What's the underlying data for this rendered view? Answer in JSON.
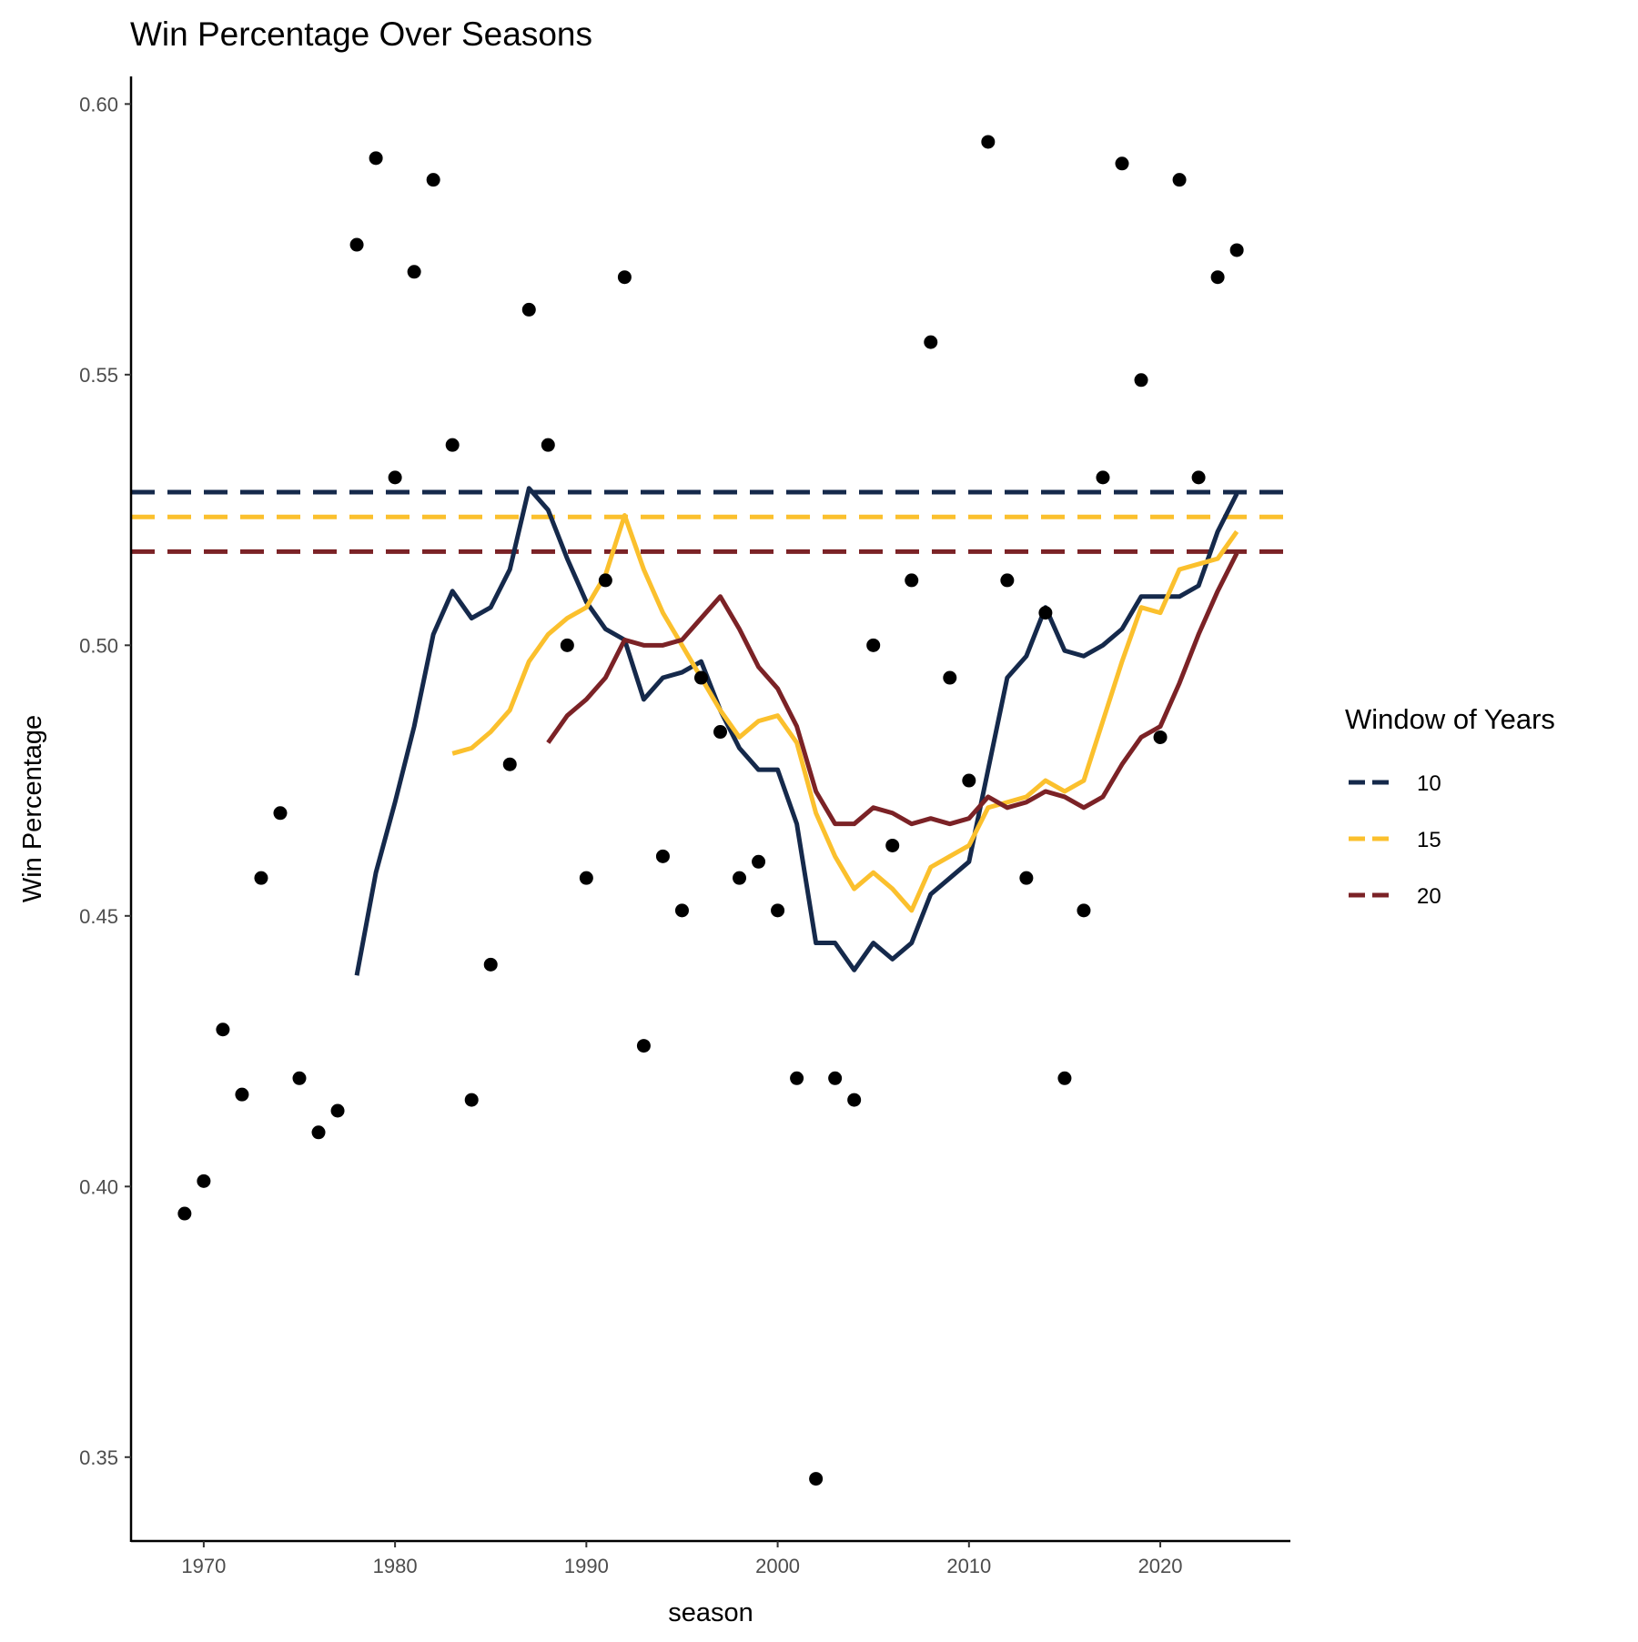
{
  "chart_data": {
    "type": "line",
    "title": "Win Percentage Over Seasons",
    "xlabel": "season",
    "ylabel": "Win Percentage",
    "xlim": [
      1966.2,
      2026.8
    ],
    "ylim": [
      0.3345,
      0.6051
    ],
    "x_ticks": [
      1970,
      1980,
      1990,
      2000,
      2010,
      2020
    ],
    "x_tick_labels": [
      "1970",
      "1980",
      "1990",
      "2000",
      "2010",
      "2020"
    ],
    "y_ticks": [
      0.35,
      0.4,
      0.45,
      0.5,
      0.55,
      0.6
    ],
    "y_tick_labels": [
      "0.35",
      "0.40",
      "0.45",
      "0.50",
      "0.55",
      "0.60"
    ],
    "grid": false,
    "legend": {
      "title": "Window of Years",
      "position": "right",
      "entries": [
        "10",
        "15",
        "20"
      ]
    },
    "points": {
      "color": "#000000",
      "x": [
        1969,
        1970,
        1971,
        1972,
        1973,
        1974,
        1975,
        1976,
        1977,
        1978,
        1979,
        1980,
        1981,
        1982,
        1983,
        1984,
        1985,
        1986,
        1987,
        1988,
        1989,
        1990,
        1991,
        1992,
        1993,
        1994,
        1995,
        1996,
        1997,
        1998,
        1999,
        2000,
        2001,
        2002,
        2003,
        2004,
        2005,
        2006,
        2007,
        2008,
        2009,
        2010,
        2011,
        2012,
        2013,
        2014,
        2015,
        2016,
        2017,
        2018,
        2019,
        2020,
        2021,
        2022,
        2023,
        2024
      ],
      "y": [
        0.395,
        0.401,
        0.429,
        0.417,
        0.457,
        0.469,
        0.42,
        0.41,
        0.414,
        0.574,
        0.59,
        0.531,
        0.569,
        0.586,
        0.537,
        0.416,
        0.441,
        0.478,
        0.562,
        0.537,
        0.5,
        0.457,
        0.512,
        0.568,
        0.426,
        0.461,
        0.451,
        0.494,
        0.484,
        0.457,
        0.46,
        0.451,
        0.42,
        0.346,
        0.42,
        0.416,
        0.5,
        0.463,
        0.512,
        0.556,
        0.494,
        0.475,
        0.593,
        0.512,
        0.457,
        0.506,
        0.42,
        0.451,
        0.531,
        0.589,
        0.549,
        0.483,
        0.586,
        0.531,
        0.568,
        0.573
      ]
    },
    "series": [
      {
        "name": "10",
        "color": "#15294b",
        "x": [
          1978,
          1979,
          1980,
          1981,
          1982,
          1983,
          1984,
          1985,
          1986,
          1987,
          1988,
          1989,
          1990,
          1991,
          1992,
          1993,
          1994,
          1995,
          1996,
          1997,
          1998,
          1999,
          2000,
          2001,
          2002,
          2003,
          2004,
          2005,
          2006,
          2007,
          2008,
          2009,
          2010,
          2011,
          2012,
          2013,
          2014,
          2015,
          2016,
          2017,
          2018,
          2019,
          2020,
          2021,
          2022,
          2023,
          2024
        ],
        "y": [
          0.439,
          0.458,
          0.471,
          0.485,
          0.502,
          0.51,
          0.505,
          0.507,
          0.514,
          0.529,
          0.525,
          0.516,
          0.508,
          0.503,
          0.501,
          0.49,
          0.494,
          0.495,
          0.497,
          0.488,
          0.481,
          0.477,
          0.477,
          0.467,
          0.445,
          0.445,
          0.44,
          0.445,
          0.442,
          0.445,
          0.454,
          0.457,
          0.46,
          0.477,
          0.494,
          0.498,
          0.507,
          0.499,
          0.498,
          0.5,
          0.503,
          0.509,
          0.509,
          0.509,
          0.511,
          0.521,
          0.528
        ],
        "mean": 0.5283
      },
      {
        "name": "15",
        "color": "#fbc02d",
        "x": [
          1983,
          1984,
          1985,
          1986,
          1987,
          1988,
          1989,
          1990,
          1991,
          1992,
          1993,
          1994,
          1995,
          1996,
          1997,
          1998,
          1999,
          2000,
          2001,
          2002,
          2003,
          2004,
          2005,
          2006,
          2007,
          2008,
          2009,
          2010,
          2011,
          2012,
          2013,
          2014,
          2015,
          2016,
          2017,
          2018,
          2019,
          2020,
          2021,
          2022,
          2023,
          2024
        ],
        "y": [
          0.48,
          0.481,
          0.484,
          0.488,
          0.497,
          0.502,
          0.505,
          0.507,
          0.513,
          0.524,
          0.514,
          0.506,
          0.5,
          0.494,
          0.488,
          0.483,
          0.486,
          0.487,
          0.482,
          0.469,
          0.461,
          0.455,
          0.458,
          0.455,
          0.451,
          0.459,
          0.461,
          0.463,
          0.47,
          0.471,
          0.472,
          0.475,
          0.473,
          0.475,
          0.486,
          0.497,
          0.507,
          0.506,
          0.514,
          0.515,
          0.516,
          0.521
        ],
        "mean": 0.5237
      },
      {
        "name": "20",
        "color": "#7b2226",
        "x": [
          1988,
          1989,
          1990,
          1991,
          1992,
          1993,
          1994,
          1995,
          1996,
          1997,
          1998,
          1999,
          2000,
          2001,
          2002,
          2003,
          2004,
          2005,
          2006,
          2007,
          2008,
          2009,
          2010,
          2011,
          2012,
          2013,
          2014,
          2015,
          2016,
          2017,
          2018,
          2019,
          2020,
          2021,
          2022,
          2023,
          2024
        ],
        "y": [
          0.482,
          0.487,
          0.49,
          0.494,
          0.501,
          0.5,
          0.5,
          0.501,
          0.505,
          0.509,
          0.503,
          0.496,
          0.492,
          0.485,
          0.473,
          0.467,
          0.467,
          0.47,
          0.469,
          0.467,
          0.468,
          0.467,
          0.468,
          0.472,
          0.47,
          0.471,
          0.473,
          0.472,
          0.47,
          0.472,
          0.478,
          0.483,
          0.485,
          0.493,
          0.502,
          0.51,
          0.517
        ],
        "mean": 0.5173
      }
    ]
  }
}
